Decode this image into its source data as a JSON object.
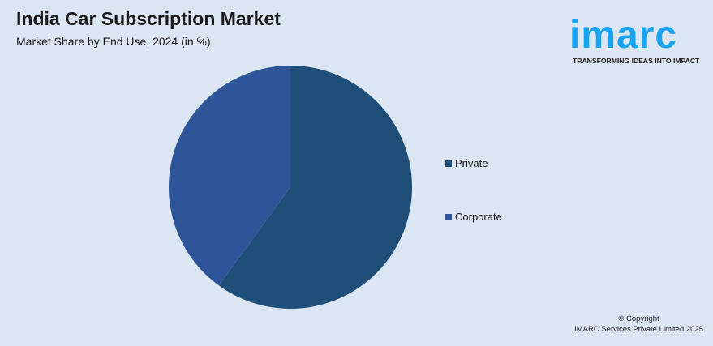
{
  "header": {
    "title": "India Car Subscription Market",
    "subtitle": "Market Share by End Use, 2024 (in %)"
  },
  "logo": {
    "word": "imarc",
    "tagline": "TRANSFORMING IDEAS INTO IMPACT",
    "color": "#1aa3f0"
  },
  "chart_data": {
    "type": "pie",
    "title": "India Car Subscription Market",
    "subtitle": "Market Share by End Use, 2024 (in %)",
    "categories": [
      "Private",
      "Corporate"
    ],
    "values": [
      60,
      40
    ],
    "colors": [
      "#1f4e79",
      "#2e5597"
    ],
    "legend_position": "right",
    "start": "top, clockwise"
  },
  "footer": {
    "copyright": "© Copyright",
    "company": "IMARC Services Private Limited 2025"
  }
}
